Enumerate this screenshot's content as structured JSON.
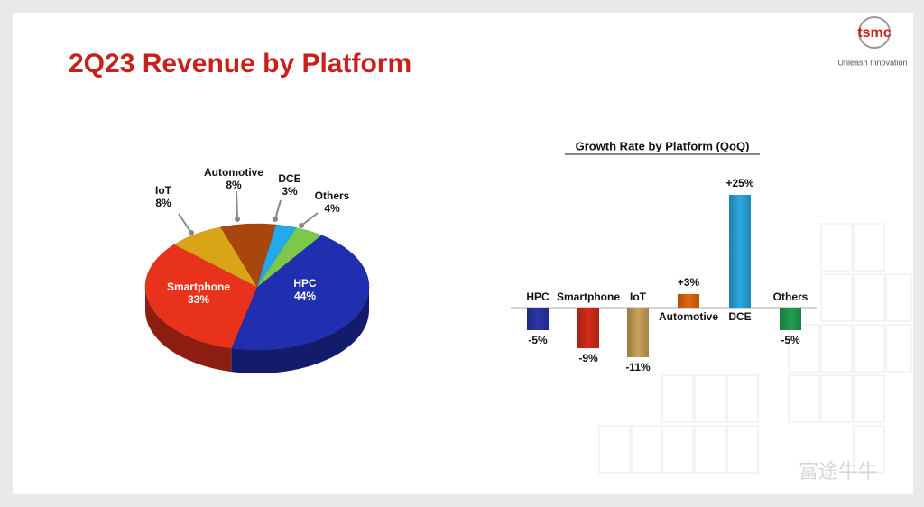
{
  "title": "2Q23 Revenue by Platform",
  "logo": {
    "brand": "tsmc",
    "tagline": "Unleash Innovation"
  },
  "watermark": "富途牛牛",
  "chart_data": [
    {
      "type": "pie",
      "categories": [
        "HPC",
        "Smartphone",
        "IoT",
        "Automotive",
        "DCE",
        "Others"
      ],
      "values": [
        44,
        33,
        8,
        8,
        3,
        4
      ],
      "value_labels": [
        "44%",
        "33%",
        "8%",
        "8%",
        "3%",
        "4%"
      ],
      "colors": [
        "#1f2fb0",
        "#e8321c",
        "#d9a416",
        "#a8460e",
        "#22aaec",
        "#7cc84a"
      ]
    },
    {
      "type": "bar",
      "title": "Growth Rate by Platform (QoQ)",
      "categories": [
        "HPC",
        "Smartphone",
        "IoT",
        "Automotive",
        "DCE",
        "Others"
      ],
      "values": [
        -5,
        -9,
        -11,
        3,
        25,
        -5
      ],
      "value_labels": [
        "-5%",
        "-9%",
        "-11%",
        "+3%",
        "+25%",
        "-5%"
      ],
      "colors": [
        "#2a36a8",
        "#d62c1a",
        "#c9a35a",
        "#e2680e",
        "#2aa9e2",
        "#21a050"
      ]
    }
  ]
}
